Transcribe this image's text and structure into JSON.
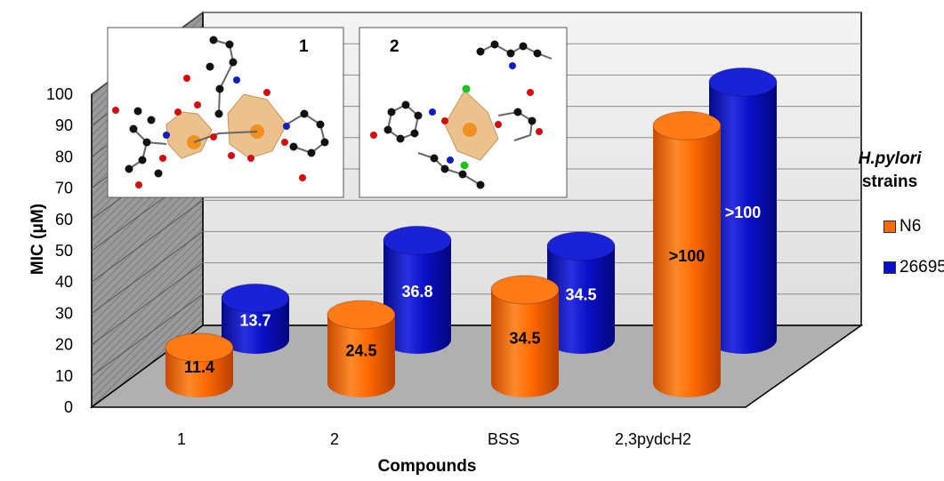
{
  "chart_data": {
    "type": "bar",
    "xlabel": "Compounds",
    "ylabel": "MIC  (μM)",
    "ylim": [
      0,
      100
    ],
    "yticks": [
      0,
      10,
      20,
      30,
      40,
      50,
      60,
      70,
      80,
      90,
      100
    ],
    "categories": [
      "1",
      "2",
      "BSS",
      "2,3pydcH2"
    ],
    "legend_title_line1": "H.pylori",
    "legend_title_line2": "strains",
    "legend_position": "right",
    "grid": true,
    "series": [
      {
        "name": "N6",
        "color": "#ff6a00",
        "values": [
          11.4,
          24.5,
          34.5,
          100
        ],
        "labels": [
          "11.4",
          "24.5",
          "34.5",
          ">100"
        ]
      },
      {
        "name": "26695",
        "color": "#0a10c8",
        "values": [
          13.7,
          36.8,
          34.5,
          100
        ],
        "labels": [
          "13.7",
          "36.8",
          "34.5",
          ">100"
        ]
      }
    ]
  },
  "insets": [
    {
      "label": "1"
    },
    {
      "label": "2"
    }
  ]
}
